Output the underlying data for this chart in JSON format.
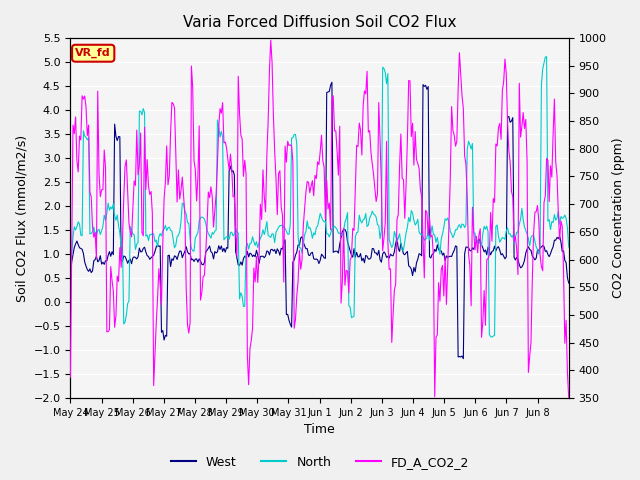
{
  "title": "Varia Forced Diffusion Soil CO2 Flux",
  "xlabel": "Time",
  "ylabel_left": "Soil CO2 Flux (mmol/m2/s)",
  "ylabel_right": "CO2 Concentration (ppm)",
  "ylim_left": [
    -2.0,
    5.5
  ],
  "ylim_right": [
    350,
    1000
  ],
  "annotation_text": "VR_fd",
  "annotation_color": "#cc0000",
  "annotation_bg": "#ffff99",
  "bg_color": "#f0f0f0",
  "plot_bg": "#f5f5f5",
  "line_west_color": "#000080",
  "line_north_color": "#00cccc",
  "line_co2_color": "#ff00ff",
  "legend_labels": [
    "West",
    "North",
    "FD_A_CO2_2"
  ],
  "xtick_labels": [
    "May 24",
    "May 25",
    "May 26",
    "May 27",
    "May 28",
    "May 29",
    "May 30",
    "May 31",
    "Jun 1",
    "Jun 2",
    "Jun 3",
    "Jun 4",
    "Jun 5",
    "Jun 6",
    "Jun 7",
    "Jun 8"
  ],
  "n_days": 16,
  "seed": 42
}
